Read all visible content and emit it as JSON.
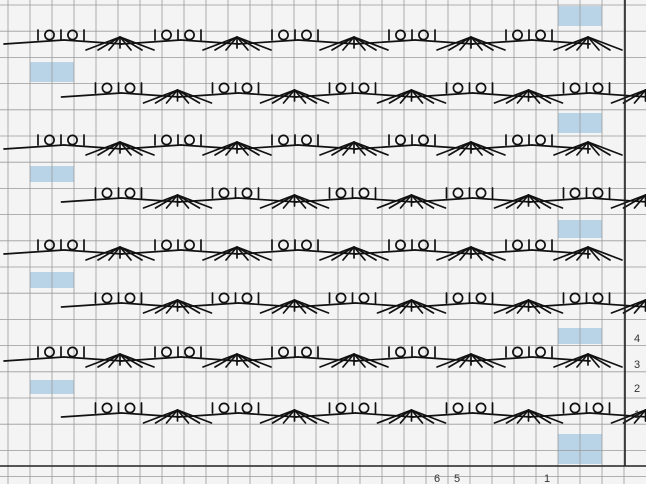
{
  "chart": {
    "title": "",
    "row_numbers": [
      "1",
      "2",
      "3",
      "4"
    ],
    "column_numbers": [
      "6",
      "5",
      "1"
    ]
  },
  "colors": {
    "background": "#f4f4f4",
    "grid_line": "#9a9a9a",
    "frame_line": "#222222",
    "symbol": "#111111",
    "no_stitch": "#b8d4e6",
    "text": "#333333"
  },
  "symbols": {
    "knit": "vertical-bar",
    "yarn_over": "circle",
    "decrease": "fan-multiple-decrease"
  }
}
